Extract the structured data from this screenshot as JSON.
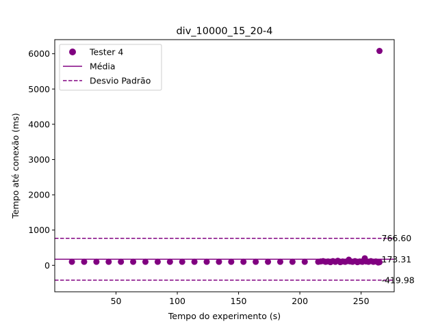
{
  "chart_data": {
    "type": "scatter",
    "title": "div_10000_15_20-4",
    "xlabel": "Tempo do experimento (s)",
    "ylabel": "Tempo até conexão (ms)",
    "xlim": [
      0,
      277
    ],
    "ylim": [
      -750,
      6400
    ],
    "xticks": [
      50,
      100,
      150,
      200,
      250
    ],
    "yticks": [
      0,
      1000,
      2000,
      3000,
      4000,
      5000,
      6000
    ],
    "grid": false,
    "legend_position": "top-left",
    "color": "#800080",
    "series": [
      {
        "name": "Tester 4",
        "points": [
          [
            14,
            100
          ],
          [
            24,
            100
          ],
          [
            34,
            100
          ],
          [
            44,
            100
          ],
          [
            54,
            100
          ],
          [
            64,
            100
          ],
          [
            74,
            100
          ],
          [
            84,
            100
          ],
          [
            94,
            100
          ],
          [
            104,
            100
          ],
          [
            114,
            100
          ],
          [
            124,
            100
          ],
          [
            134,
            100
          ],
          [
            144,
            100
          ],
          [
            154,
            100
          ],
          [
            164,
            100
          ],
          [
            174,
            100
          ],
          [
            184,
            100
          ],
          [
            194,
            100
          ],
          [
            204,
            100
          ],
          [
            215,
            100
          ],
          [
            217,
            110
          ],
          [
            219,
            120
          ],
          [
            221,
            100
          ],
          [
            223,
            110
          ],
          [
            225,
            90
          ],
          [
            227,
            120
          ],
          [
            229,
            100
          ],
          [
            231,
            130
          ],
          [
            233,
            90
          ],
          [
            235,
            110
          ],
          [
            237,
            100
          ],
          [
            239,
            120
          ],
          [
            240,
            160
          ],
          [
            241,
            110
          ],
          [
            243,
            100
          ],
          [
            245,
            120
          ],
          [
            247,
            90
          ],
          [
            249,
            110
          ],
          [
            251,
            100
          ],
          [
            252,
            130
          ],
          [
            253,
            200
          ],
          [
            254,
            110
          ],
          [
            256,
            100
          ],
          [
            258,
            120
          ],
          [
            260,
            100
          ],
          [
            262,
            110
          ],
          [
            264,
            80
          ],
          [
            265,
            90
          ],
          [
            265,
            6080
          ]
        ]
      }
    ],
    "lines": [
      {
        "name": "Média",
        "value": 173.31,
        "label": "173.31",
        "style": "solid"
      },
      {
        "name": "Desvio Padrão",
        "value": 766.6,
        "label": "766.60",
        "style": "dashed"
      },
      {
        "name": "",
        "value": -419.98,
        "label": "-419.98",
        "style": "dashed"
      }
    ],
    "legend": [
      "Tester 4",
      "Média",
      "Desvio Padrão"
    ]
  }
}
